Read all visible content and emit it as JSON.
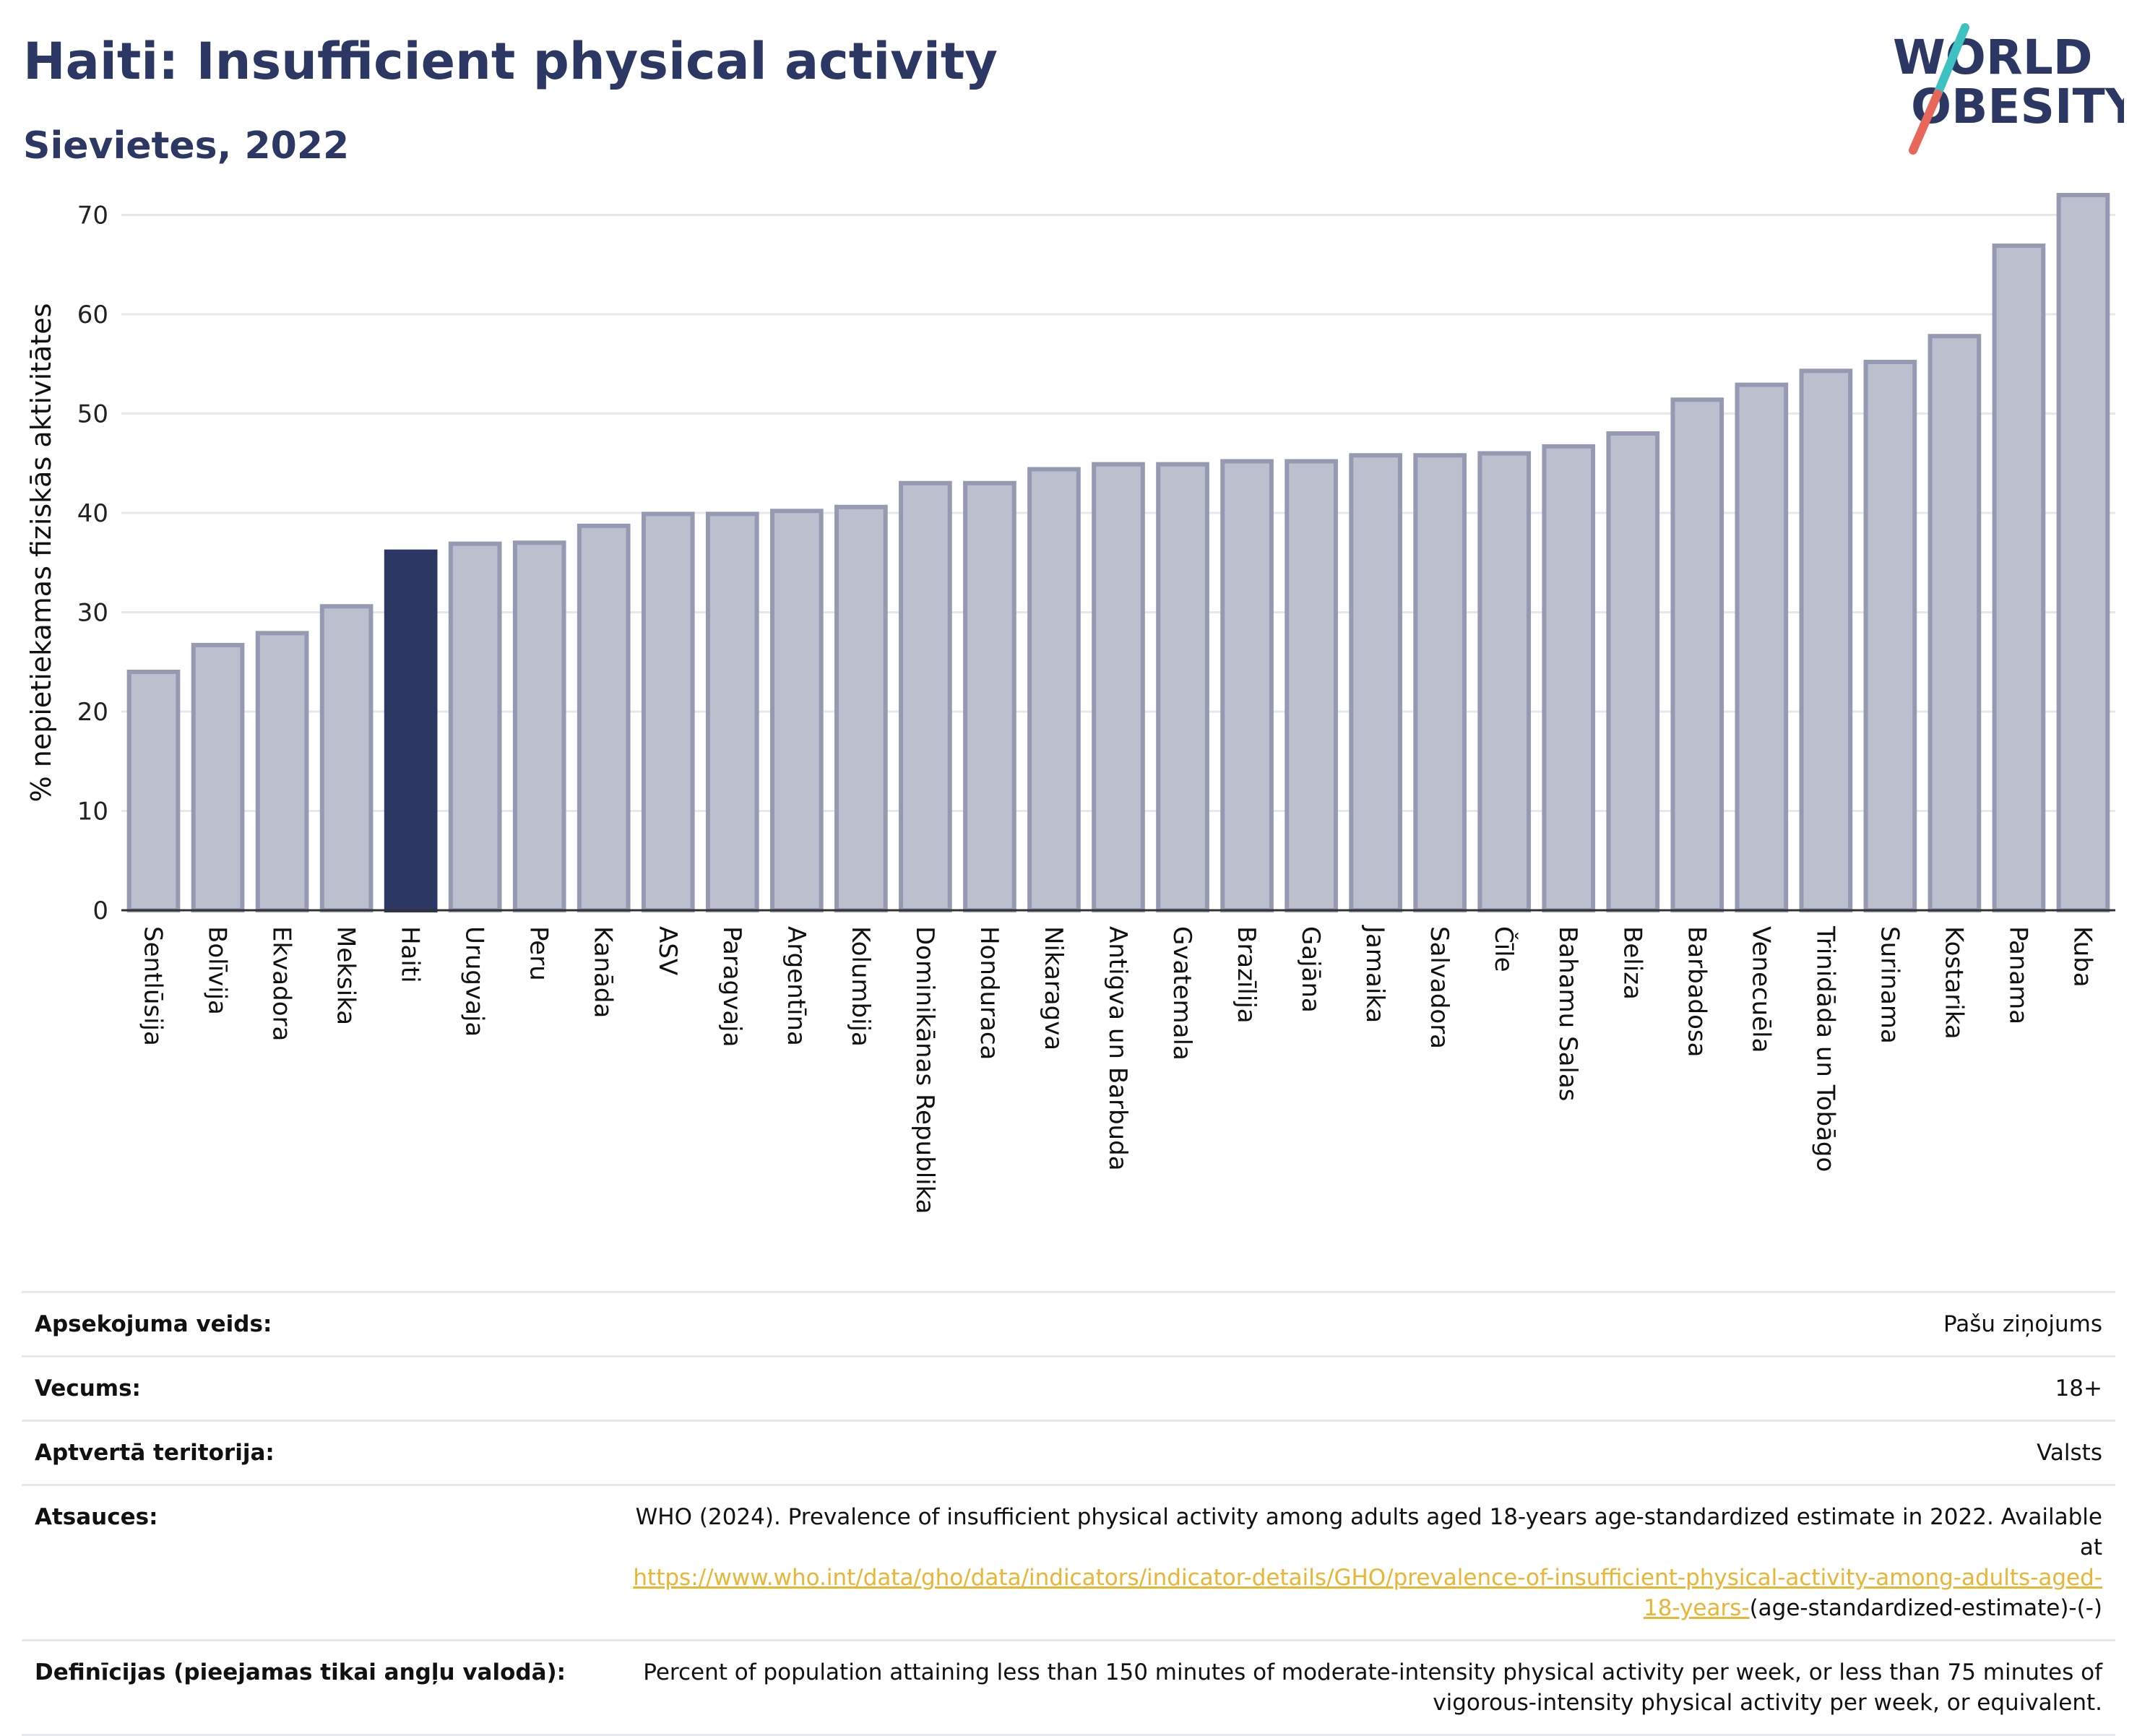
{
  "title": "Haiti: Insufficient physical activity",
  "subtitle": "Sievietes, 2022",
  "logo": {
    "line1": "WORLD",
    "line2": "OBESITY",
    "colors": {
      "text": "#2c3764",
      "slash_top": "#3ec1c1",
      "slash_bottom": "#e8675b"
    }
  },
  "colors": {
    "bar": "#bcbfcd",
    "bar_edge": "#9599b2",
    "highlight": "#2c3764",
    "grid": "#e6e8ee",
    "axis": "#333333",
    "link": "#e8b535"
  },
  "chart_data": {
    "type": "bar",
    "ylabel": "% nepietiekamas fiziskās aktivitātes",
    "xlabel": "",
    "ylim": [
      0,
      72
    ],
    "yticks": [
      0,
      10,
      20,
      30,
      40,
      50,
      60,
      70
    ],
    "grid": true,
    "highlight": "Haiti",
    "categories": [
      "Sentlūsija",
      "Bolīvija",
      "Ekvadora",
      "Meksika",
      "Haiti",
      "Urugvaja",
      "Peru",
      "Kanāda",
      "ASV",
      "Paragvaja",
      "Argentīna",
      "Kolumbija",
      "Dominikānas Republika",
      "Honduraса",
      "Nikaragva",
      "Antigva un Barbuda",
      "Gvatemala",
      "Brazīlija",
      "Gajāna",
      "Jamaika",
      "Salvadora",
      "Čīle",
      "Bahamu Salas",
      "Beliza",
      "Barbadosa",
      "Venecuēla",
      "Trinidāda un Tobāgo",
      "Surinama",
      "Kostarika",
      "Panama",
      "Kuba"
    ],
    "values": [
      24.0,
      26.7,
      27.9,
      30.6,
      36.1,
      36.9,
      37.0,
      38.7,
      39.9,
      39.9,
      40.2,
      40.6,
      43.0,
      43.0,
      44.4,
      44.9,
      44.9,
      45.2,
      45.2,
      45.8,
      45.8,
      46.0,
      46.7,
      48.0,
      51.4,
      52.9,
      54.3,
      55.2,
      57.8,
      66.9,
      72.0
    ]
  },
  "info": [
    {
      "label": "Apsekojuma veids:",
      "value": "Pašu ziņojums"
    },
    {
      "label": "Vecums:",
      "value": "18+"
    },
    {
      "label": "Aptvertā teritorija:",
      "value": "Valsts"
    },
    {
      "label": "Atsauces:",
      "value": "WHO (2024). Prevalence of insufficient physical activity among adults aged 18-years age-standardized estimate in 2022. Available at",
      "link": "https://www.who.int/data/gho/data/indicators/indicator-details/GHO/prevalence-of-insufficient-physical-activity-among-adults-aged-18-years-",
      "suffix": "(age-standardized-estimate)-(-)"
    },
    {
      "label": "Definīcijas (pieejamas tikai angļu valodā):",
      "value": "Percent of population attaining less than 150 minutes of moderate-intensity physical activity per week, or less than 75 minutes of vigorous-intensity physical activity per week, or equivalent."
    }
  ]
}
